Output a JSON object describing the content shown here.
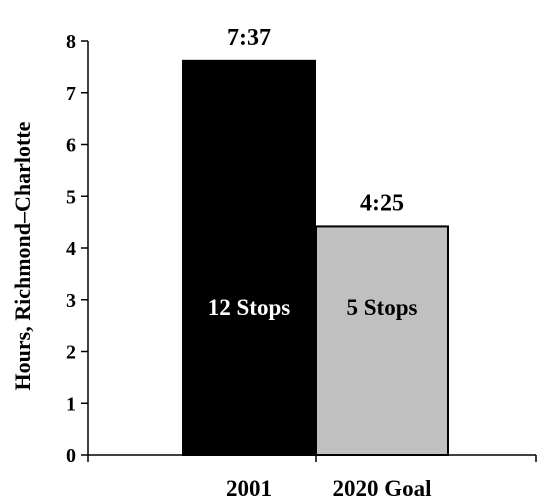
{
  "chart_data": {
    "type": "bar",
    "categories": [
      "2001",
      "2020 Goal"
    ],
    "values": [
      7.617,
      4.417
    ],
    "value_labels": [
      "7:37",
      "4:25"
    ],
    "inner_labels": [
      "12 Stops",
      "5 Stops"
    ],
    "colors": [
      "#000000",
      "#c0c0c0"
    ],
    "inner_label_colors": [
      "#ffffff",
      "#000000"
    ],
    "ylabel": "Hours, Richmond–Charlotte",
    "xlabel": "",
    "title": "",
    "ylim": [
      0,
      8
    ],
    "yticks": [
      "0",
      "1",
      "2",
      "3",
      "4",
      "5",
      "6",
      "7",
      "8"
    ],
    "grid": false,
    "legend": "none"
  }
}
